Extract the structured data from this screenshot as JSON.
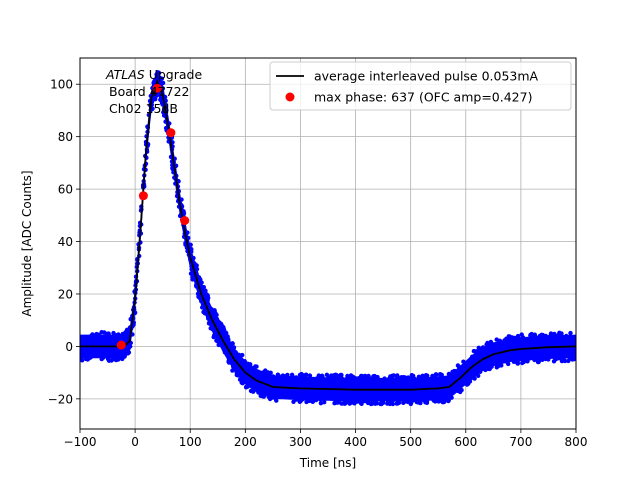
{
  "chart_data": {
    "type": "scatter",
    "xlabel": "Time [ns]",
    "ylabel": "Amplitude [ADC Counts]",
    "xlim": [
      -100,
      800
    ],
    "ylim": [
      -31.5,
      110
    ],
    "xticks": [
      -100,
      0,
      100,
      200,
      300,
      400,
      500,
      600,
      700,
      800
    ],
    "yticks": [
      -20,
      0,
      20,
      40,
      60,
      80,
      100
    ],
    "grid": true,
    "legend_position": "top-right",
    "annotation": {
      "atlas": "ATLAS",
      "upgrade": " Upgrade",
      "board": "Board 47722",
      "channel": "Ch02 15dB"
    },
    "series": [
      {
        "name": "average interleaved pulse 0.053mA",
        "kind": "line",
        "color": "#000000",
        "x": [
          -100,
          -20,
          -10,
          0,
          10,
          20,
          30,
          40,
          50,
          60,
          70,
          80,
          90,
          100,
          120,
          140,
          160,
          180,
          200,
          220,
          250,
          300,
          400,
          500,
          550,
          570,
          590,
          610,
          630,
          650,
          680,
          700,
          750,
          800
        ],
        "y": [
          0,
          0,
          2,
          18,
          45,
          75,
          95,
          101,
          96,
          84,
          70,
          56,
          44,
          34,
          20,
          10,
          2,
          -5,
          -10,
          -13,
          -15.5,
          -16,
          -16.5,
          -16.5,
          -16,
          -15.5,
          -12,
          -8,
          -5,
          -3,
          -1.5,
          -1,
          -0.3,
          0
        ]
      },
      {
        "name": "max phase: 637 (OFC amp=0.427)",
        "kind": "points",
        "color": "#ff0000",
        "x": [
          -25,
          15,
          40,
          65,
          90
        ],
        "y": [
          0.5,
          57.5,
          98.5,
          81.5,
          48
        ]
      }
    ],
    "scatter_color": "#0000ff"
  }
}
